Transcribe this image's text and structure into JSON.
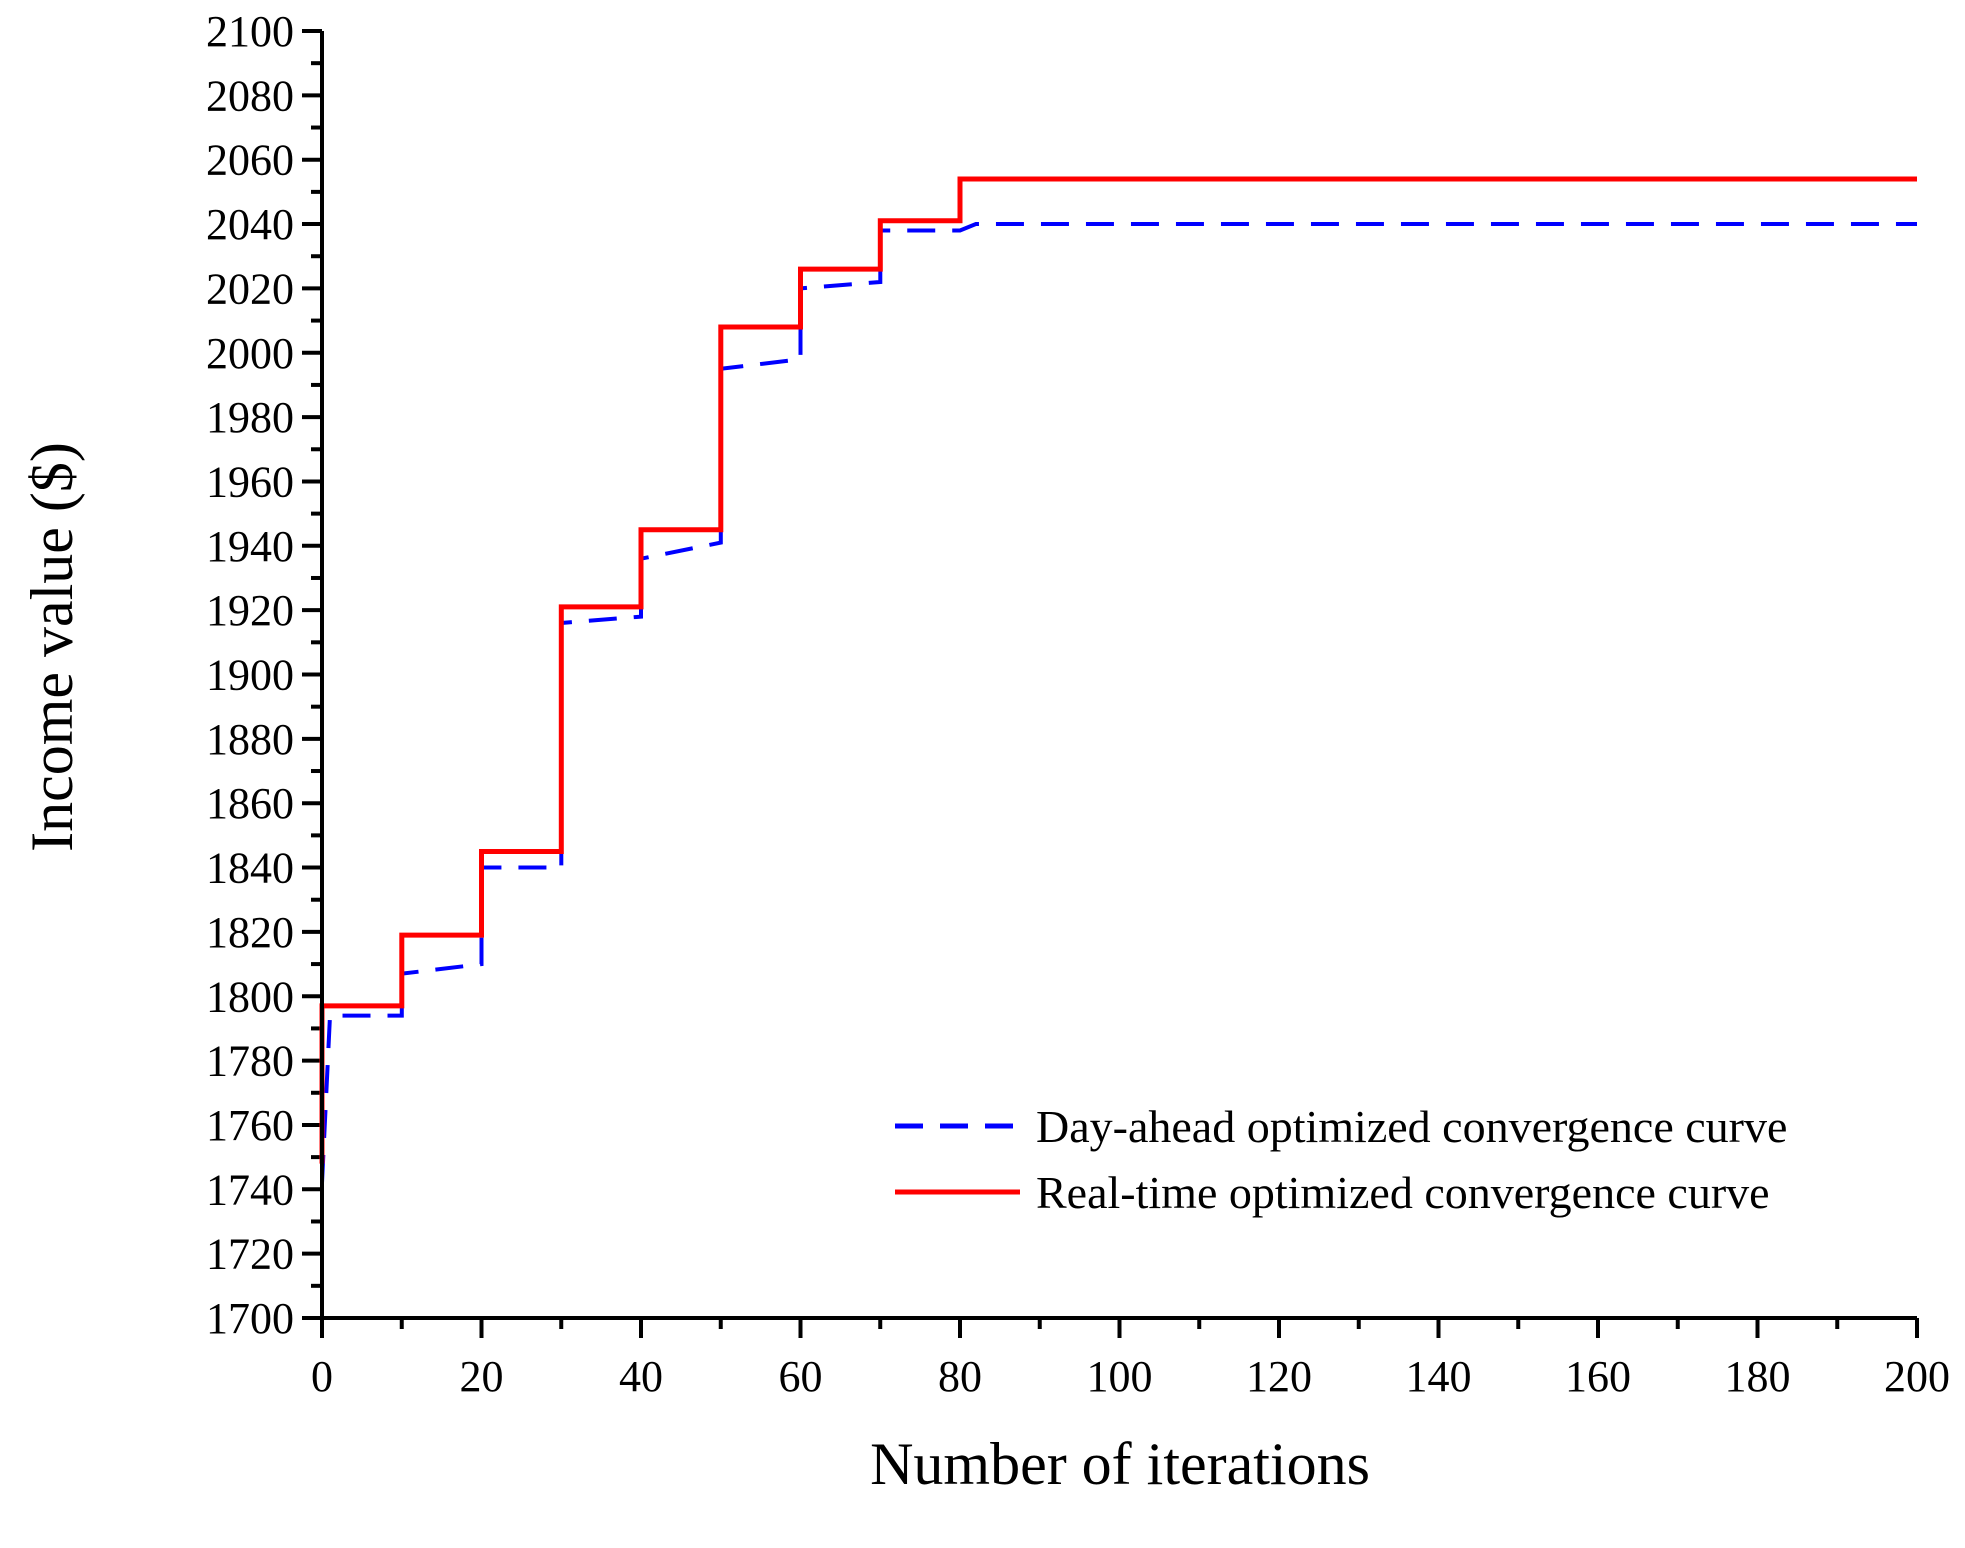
{
  "chart_data": {
    "type": "line",
    "title": "",
    "xlabel": "Number of iterations",
    "ylabel": "Income value ($)",
    "xlim": [
      0,
      200
    ],
    "ylim": [
      1700,
      2100
    ],
    "xticks": [
      0,
      20,
      40,
      60,
      80,
      100,
      120,
      140,
      160,
      180,
      200
    ],
    "xtick_labels": [
      "0",
      "20",
      "40",
      "60",
      "80",
      "100",
      "120",
      "140",
      "160",
      "180",
      "200"
    ],
    "yticks": [
      1700,
      1720,
      1740,
      1760,
      1780,
      1800,
      1820,
      1840,
      1860,
      1880,
      1900,
      1920,
      1940,
      1960,
      1980,
      2000,
      2020,
      2040,
      2060,
      2080,
      2100
    ],
    "ytick_labels": [
      "1700",
      "1720",
      "1740",
      "1760",
      "1780",
      "1800",
      "1820",
      "1840",
      "1860",
      "1880",
      "1900",
      "1920",
      "1940",
      "1960",
      "1980",
      "2000",
      "2020",
      "2040",
      "2060",
      "2080",
      "2100"
    ],
    "grid": false,
    "legend_position": "bottom-right",
    "series": [
      {
        "name": "Day-ahead optimized convergence curve",
        "color": "#0000ff",
        "style": "dashed",
        "x": [
          0,
          1,
          1,
          10,
          10,
          20,
          20,
          30,
          30,
          40,
          40,
          50,
          50,
          60,
          60,
          70,
          70,
          80,
          82,
          200
        ],
        "y": [
          1742,
          1794,
          1794,
          1794,
          1807,
          1810,
          1840,
          1840,
          1916,
          1918,
          1936,
          1941,
          1995,
          1998,
          2020,
          2022,
          2038,
          2038,
          2040,
          2040
        ]
      },
      {
        "name": "Real-time optimized convergence curve",
        "color": "#ff0000",
        "style": "solid",
        "x": [
          0,
          0,
          10,
          10,
          20,
          20,
          30,
          30,
          40,
          40,
          50,
          50,
          60,
          60,
          70,
          70,
          80,
          80,
          200
        ],
        "y": [
          1748,
          1797,
          1797,
          1819,
          1819,
          1845,
          1845,
          1921,
          1921,
          1945,
          1945,
          2008,
          2008,
          2026,
          2026,
          2041,
          2041,
          2054,
          2054
        ]
      }
    ]
  }
}
